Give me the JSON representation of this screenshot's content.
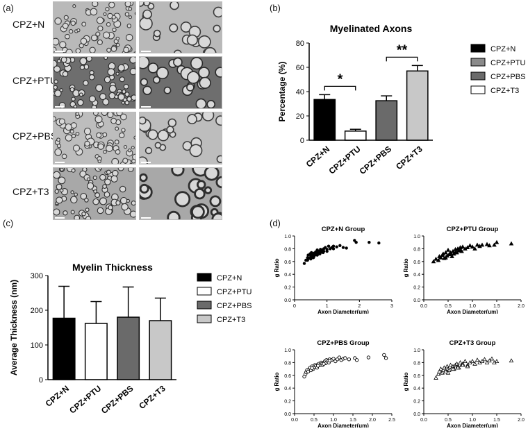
{
  "panel_labels": [
    "(a)",
    "(b)",
    "(c)",
    "(d)"
  ],
  "panel_a": {
    "rows": [
      "CPZ+N",
      "CPZ+PTU",
      "CPZ+PBS",
      "CPZ+T3"
    ],
    "tones": [
      {
        "bg": "#b9b9b9",
        "ring": "#3a3a3a"
      },
      {
        "bg": "#6e6e6e",
        "ring": "#2a2a2a"
      },
      {
        "bg": "#bdbdbd",
        "ring": "#3c3c3c"
      },
      {
        "bg": "#a8a8a8",
        "ring": "#2e2e2e"
      }
    ]
  },
  "chart_data": [
    {
      "type": "bar",
      "title": "Myelinated Axons",
      "ylabel": "Percentage (%)",
      "categories": [
        "CPZ+N",
        "CPZ+PTU",
        "CPZ+PBS",
        "CPZ+T3"
      ],
      "values": [
        33.5,
        7.5,
        32.5,
        57
      ],
      "errors": [
        4,
        1.5,
        4,
        4.5
      ],
      "colors": [
        "#000000",
        "#ffffff",
        "#6a6a6a",
        "#c8c8c8"
      ],
      "ylim": [
        0,
        80
      ],
      "yticks": [
        0,
        20,
        40,
        60,
        80
      ],
      "legend": [
        "CPZ+N",
        "CPZ+PTU",
        "CPZ+PBS",
        "CPZ+T3"
      ],
      "legend_colors": [
        "#000000",
        "#8a8a8a",
        "#6a6a6a",
        "#ffffff"
      ],
      "significance": [
        {
          "pair": [
            0,
            1
          ],
          "label": "*"
        },
        {
          "pair": [
            2,
            3
          ],
          "label": "**"
        }
      ]
    },
    {
      "type": "bar",
      "title": "Myelin Thickness",
      "ylabel": "Average Thickness (nm)",
      "categories": [
        "CPZ+N",
        "CPZ+PTU",
        "CPZ+PBS",
        "CPZ+T3"
      ],
      "values": [
        177,
        162,
        180,
        170
      ],
      "errors": [
        92,
        63,
        87,
        65
      ],
      "colors": [
        "#000000",
        "#ffffff",
        "#6a6a6a",
        "#c8c8c8"
      ],
      "ylim": [
        0,
        300
      ],
      "yticks": [
        0,
        100,
        200,
        300
      ],
      "legend": [
        "CPZ+N",
        "CPZ+PTU",
        "CPZ+PBS",
        "CPZ+T3"
      ],
      "legend_colors": [
        "#000000",
        "#ffffff",
        "#6a6a6a",
        "#c8c8c8"
      ]
    },
    {
      "type": "scatter",
      "title": "CPZ+N Group",
      "xlabel": "Axon Diameter(um)",
      "ylabel": "g Ratio",
      "marker": "dot",
      "xlim": [
        0,
        3
      ],
      "xticks": [
        0,
        1,
        2,
        3
      ],
      "ylim": [
        0,
        1.0
      ],
      "yticks": [
        0.0,
        0.2,
        0.4,
        0.6,
        0.8,
        1.0
      ],
      "x": [
        0.3,
        0.35,
        0.4,
        0.42,
        0.45,
        0.48,
        0.5,
        0.52,
        0.55,
        0.58,
        0.6,
        0.62,
        0.65,
        0.68,
        0.7,
        0.72,
        0.75,
        0.78,
        0.8,
        0.82,
        0.85,
        0.88,
        0.9,
        0.95,
        1.0,
        1.05,
        1.1,
        1.15,
        1.2,
        1.3,
        1.4,
        1.5,
        1.6,
        1.85,
        1.9,
        2.3,
        2.6,
        0.4,
        0.5,
        0.6,
        0.7,
        0.8,
        0.9,
        1.0,
        1.2,
        0.55,
        0.65,
        0.75
      ],
      "y": [
        0.57,
        0.62,
        0.66,
        0.7,
        0.65,
        0.72,
        0.68,
        0.74,
        0.7,
        0.66,
        0.73,
        0.7,
        0.75,
        0.72,
        0.78,
        0.74,
        0.76,
        0.72,
        0.79,
        0.75,
        0.78,
        0.74,
        0.8,
        0.82,
        0.79,
        0.84,
        0.8,
        0.82,
        0.84,
        0.83,
        0.85,
        0.82,
        0.81,
        0.93,
        0.9,
        0.9,
        0.89,
        0.62,
        0.64,
        0.68,
        0.7,
        0.74,
        0.76,
        0.76,
        0.8,
        0.67,
        0.71,
        0.73
      ]
    },
    {
      "type": "scatter",
      "title": "CPZ+PTU Group",
      "xlabel": "Axon Diameter(um)",
      "ylabel": "g Ratio",
      "marker": "triangle",
      "xlim": [
        0,
        2.0
      ],
      "xticks": [
        0.0,
        0.5,
        1.0,
        1.5,
        2.0
      ],
      "ylim": [
        0,
        1.0
      ],
      "yticks": [
        0.0,
        0.2,
        0.4,
        0.6,
        0.8,
        1.0
      ],
      "x": [
        0.2,
        0.25,
        0.3,
        0.32,
        0.35,
        0.38,
        0.4,
        0.42,
        0.45,
        0.48,
        0.5,
        0.52,
        0.55,
        0.58,
        0.6,
        0.62,
        0.65,
        0.68,
        0.7,
        0.72,
        0.75,
        0.78,
        0.8,
        0.85,
        0.9,
        0.95,
        1.0,
        1.05,
        1.1,
        1.15,
        1.2,
        1.3,
        1.35,
        1.45,
        1.5,
        1.8,
        0.45,
        0.55,
        0.65,
        0.75
      ],
      "y": [
        0.6,
        0.64,
        0.62,
        0.68,
        0.66,
        0.7,
        0.72,
        0.65,
        0.74,
        0.69,
        0.78,
        0.71,
        0.74,
        0.68,
        0.76,
        0.72,
        0.79,
        0.74,
        0.8,
        0.77,
        0.82,
        0.76,
        0.83,
        0.8,
        0.82,
        0.85,
        0.83,
        0.8,
        0.86,
        0.84,
        0.86,
        0.87,
        0.85,
        0.86,
        0.9,
        0.88,
        0.66,
        0.72,
        0.74,
        0.78
      ]
    },
    {
      "type": "scatter",
      "title": "CPZ+PBS Group",
      "xlabel": "Axon Diameter(um)",
      "ylabel": "g Ratio",
      "marker": "circle",
      "xlim": [
        0,
        2.5
      ],
      "xticks": [
        0.0,
        0.5,
        1.0,
        1.5,
        2.0,
        2.5
      ],
      "ylim": [
        0,
        1.0
      ],
      "yticks": [
        0.0,
        0.2,
        0.4,
        0.6,
        0.8,
        1.0
      ],
      "x": [
        0.25,
        0.28,
        0.3,
        0.32,
        0.35,
        0.38,
        0.4,
        0.42,
        0.45,
        0.48,
        0.5,
        0.52,
        0.55,
        0.58,
        0.6,
        0.62,
        0.65,
        0.68,
        0.7,
        0.72,
        0.75,
        0.78,
        0.8,
        0.82,
        0.85,
        0.88,
        0.9,
        0.95,
        1.0,
        1.05,
        1.1,
        1.15,
        1.2,
        1.25,
        1.3,
        1.4,
        1.55,
        1.6,
        1.9,
        2.3,
        2.35,
        0.45,
        0.6,
        0.75,
        0.9
      ],
      "y": [
        0.58,
        0.62,
        0.65,
        0.68,
        0.66,
        0.7,
        0.72,
        0.68,
        0.74,
        0.7,
        0.73,
        0.76,
        0.75,
        0.72,
        0.77,
        0.78,
        0.76,
        0.8,
        0.78,
        0.76,
        0.8,
        0.82,
        0.79,
        0.84,
        0.82,
        0.8,
        0.85,
        0.84,
        0.86,
        0.82,
        0.85,
        0.88,
        0.84,
        0.86,
        0.87,
        0.85,
        0.87,
        0.84,
        0.88,
        0.92,
        0.87,
        0.71,
        0.75,
        0.78,
        0.83
      ]
    },
    {
      "type": "scatter",
      "title": "CPZ+T3 Group",
      "xlabel": "Axon Diameter(um)",
      "ylabel": "g Ratio",
      "marker": "triangle",
      "xlim": [
        0,
        2.0
      ],
      "xticks": [
        0.0,
        0.5,
        1.0,
        1.5,
        2.0
      ],
      "ylim": [
        0,
        1.0
      ],
      "yticks": [
        0.0,
        0.2,
        0.4,
        0.6,
        0.8,
        1.0
      ],
      "x": [
        0.25,
        0.3,
        0.32,
        0.35,
        0.38,
        0.4,
        0.42,
        0.45,
        0.48,
        0.5,
        0.52,
        0.55,
        0.58,
        0.6,
        0.62,
        0.65,
        0.68,
        0.7,
        0.72,
        0.75,
        0.78,
        0.8,
        0.85,
        0.9,
        0.95,
        1.0,
        1.05,
        1.1,
        1.15,
        1.2,
        1.25,
        1.3,
        1.35,
        1.4,
        1.45,
        1.5,
        1.8,
        0.5,
        0.6,
        0.7,
        0.8,
        0.9
      ],
      "y": [
        0.56,
        0.62,
        0.66,
        0.7,
        0.64,
        0.68,
        0.72,
        0.66,
        0.74,
        0.7,
        0.68,
        0.76,
        0.72,
        0.74,
        0.7,
        0.76,
        0.78,
        0.74,
        0.72,
        0.8,
        0.76,
        0.78,
        0.82,
        0.76,
        0.8,
        0.82,
        0.78,
        0.84,
        0.8,
        0.82,
        0.85,
        0.8,
        0.83,
        0.86,
        0.8,
        0.82,
        0.83,
        0.64,
        0.7,
        0.72,
        0.76,
        0.74
      ]
    }
  ]
}
